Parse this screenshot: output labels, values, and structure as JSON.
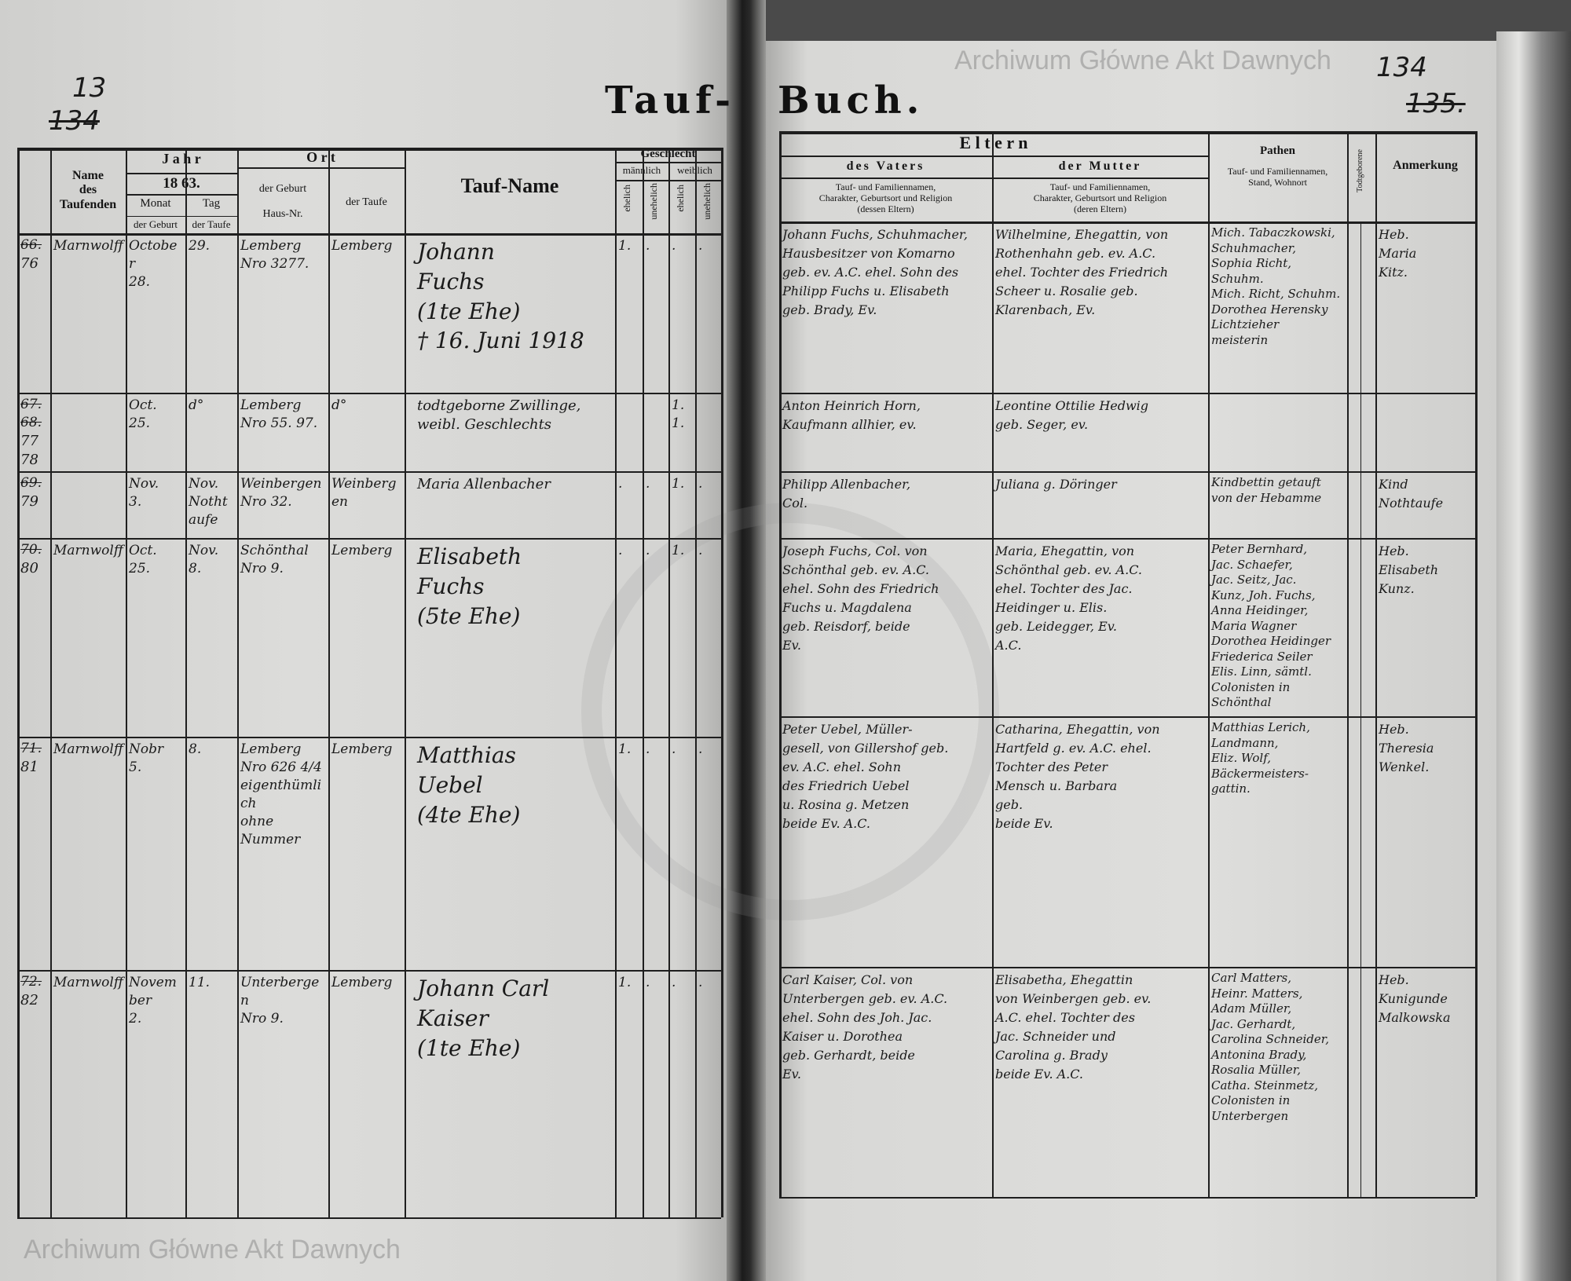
{
  "left_page": {
    "page_numbers": {
      "current": "13",
      "crossed_out": "134"
    },
    "title_part": "Tauf-",
    "headers": {
      "name_des_taufenden": "Name\ndes Taufenden",
      "jahr": "J a h r",
      "year": "18 63.",
      "monat": "Monat",
      "tag": "Tag",
      "der_geburt": "der Geburt",
      "der_taufe": "der Taufe",
      "ort": "O r t",
      "ort_geburt": "der Geburt\n\nHaus-Nr.",
      "ort_taufe": "der Taufe",
      "tauf_name": "Tauf-Name",
      "geschlecht": "Geschlecht",
      "maennlich": "männlich",
      "weiblich": "weiblich",
      "ehelich": "ehelich",
      "unehelich": "unehelich"
    },
    "rows": [
      {
        "old_number": "66.",
        "number": "76",
        "name_des_taufenden": "Marnwolff",
        "birth_month_day": "October\n28.",
        "baptism_day": "29.",
        "birth_place": "Lemberg\nNro 3277.",
        "baptism_place": "Lemberg",
        "baptismal_name": "Johann\nFuchs\n(1te Ehe)\n† 16. Juni 1918",
        "m_ehelich": "1.",
        "m_unehelich": ".",
        "w_ehelich": ".",
        "w_unehelich": "."
      },
      {
        "old_number": "67. 68.",
        "number": "77\n78",
        "name_des_taufenden": "",
        "birth_month_day": "Oct.\n25.",
        "baptism_day": "d°",
        "birth_place": "Lemberg\nNro 55. 97.",
        "baptism_place": "d°",
        "baptismal_name": "todtgeborne Zwillinge,\nweibl. Geschlechts",
        "m_ehelich": "",
        "m_unehelich": "",
        "w_ehelich": "1.\n1.",
        "w_unehelich": ""
      },
      {
        "old_number": "69.",
        "number": "79",
        "name_des_taufenden": "",
        "birth_month_day": "Nov.\n3.",
        "baptism_day": "Nov.\nNothtaufe",
        "birth_place": "Weinbergen\nNro 32.",
        "baptism_place": "Weinbergen",
        "baptismal_name": "Maria Allenbacher",
        "m_ehelich": ".",
        "m_unehelich": ".",
        "w_ehelich": "1.",
        "w_unehelich": "."
      },
      {
        "old_number": "70.",
        "number": "80",
        "name_des_taufenden": "Marnwolff",
        "birth_month_day": "Oct.\n25.",
        "baptism_day": "Nov.\n8.",
        "birth_place": "Schönthal\nNro 9.",
        "baptism_place": "Lemberg",
        "baptismal_name": "Elisabeth\nFuchs\n(5te Ehe)",
        "m_ehelich": ".",
        "m_unehelich": ".",
        "w_ehelich": "1.",
        "w_unehelich": "."
      },
      {
        "old_number": "71.",
        "number": "81",
        "name_des_taufenden": "Marnwolff",
        "birth_month_day": "Nobr\n5.",
        "baptism_day": "8.",
        "birth_place": "Lemberg\nNro 626 4/4\neigenthümlich\nohne\nNummer",
        "baptism_place": "Lemberg",
        "baptismal_name": "Matthias\nUebel\n(4te Ehe)",
        "m_ehelich": "1.",
        "m_unehelich": ".",
        "w_ehelich": ".",
        "w_unehelich": "."
      },
      {
        "old_number": "72.",
        "number": "82",
        "name_des_taufenden": "Marnwolff",
        "birth_month_day": "November\n2.",
        "baptism_day": "11.",
        "birth_place": "Unterbergen\nNro 9.",
        "baptism_place": "Lemberg",
        "baptismal_name": "Johann Carl\nKaiser\n(1te Ehe)",
        "m_ehelich": "1.",
        "m_unehelich": ".",
        "w_ehelich": ".",
        "w_unehelich": "."
      }
    ]
  },
  "right_page": {
    "page_numbers": {
      "current": "134",
      "crossed_out": "135."
    },
    "title_part": "Buch.",
    "headers": {
      "eltern": "E l t e r n",
      "des_vaters": "des Vaters",
      "der_mutter": "der Mutter",
      "vater_sub": "Tauf- und Familiennamen,\nCharakter, Geburtsort und Religion\n(dessen Eltern)",
      "mutter_sub": "Tauf- und Familiennamen,\nCharakter, Geburtsort und Religion\n(deren Eltern)",
      "pathen": "Pathen",
      "pathen_sub": "Tauf- und Familiennamen,\nStand, Wohnort",
      "todtgeborene": "Todtgeborene",
      "anmerkung": "Anmerkung"
    },
    "rows": [
      {
        "vater": "Johann Fuchs, Schuhmacher,\nHausbesitzer von Komarno\ngeb. ev. A.C. ehel. Sohn des\nPhilipp Fuchs u. Elisabeth\ngeb. Brady, Ev.",
        "mutter": "Wilhelmine, Ehegattin, von\nRothenhahn geb. ev. A.C.\nehel. Tochter des Friedrich\nScheer u. Rosalie geb.\nKlarenbach, Ev.",
        "pathen": "Mich. Tabaczkowski,\nSchuhmacher,\nSophia Richt, Schuhm.\nMich. Richt, Schuhm.\nDorothea Herensky\nLichtzieher\nmeisterin",
        "todtgeborene": "",
        "anmerkung": "Heb.\nMaria\nKitz."
      },
      {
        "vater": "Anton Heinrich Horn,\nKaufmann allhier, ev.",
        "mutter": "Leontine Ottilie Hedwig\ngeb. Seger, ev.",
        "pathen": "",
        "todtgeborene": "",
        "anmerkung": ""
      },
      {
        "vater": "Philipp Allenbacher,\nCol.",
        "mutter": "Juliana g. Döringer",
        "pathen": "Kindbettin getauft\nvon der Hebamme",
        "todtgeborene": "",
        "anmerkung": "Kind\nNothtaufe"
      },
      {
        "vater": "Joseph Fuchs, Col. von\nSchönthal geb. ev. A.C.\nehel. Sohn des Friedrich\nFuchs u. Magdalena\ngeb. Reisdorf, beide\nEv.",
        "mutter": "Maria, Ehegattin, von\nSchönthal geb. ev. A.C.\nehel. Tochter des Jac.\nHeidinger u. Elis.\ngeb. Leidegger, Ev.\nA.C.",
        "pathen": "Peter Bernhard,\nJac. Schaefer,\nJac. Seitz, Jac.\nKunz, Joh. Fuchs,\nAnna Heidinger,\nMaria Wagner\nDorothea Heidinger\nFriederica Seiler\nElis. Linn, sämtl.\nColonisten in Schönthal",
        "todtgeborene": "",
        "anmerkung": "Heb.\nElisabeth\nKunz."
      },
      {
        "vater": "Peter Uebel, Müller-\ngesell, von Gillershof geb.\nev. A.C. ehel. Sohn\ndes Friedrich Uebel\nu. Rosina g. Metzen\nbeide Ev. A.C.",
        "mutter": "Catharina, Ehegattin, von\nHartfeld g. ev. A.C. ehel.\nTochter des Peter\nMensch u. Barbara\ngeb.\nbeide Ev.",
        "pathen": "Matthias Lerich,\nLandmann,\nEliz. Wolf,\nBäckermeisters-\ngattin.",
        "todtgeborene": "",
        "anmerkung": "Heb.\nTheresia\nWenkel."
      },
      {
        "vater": "Carl Kaiser, Col. von\nUnterbergen geb. ev. A.C.\nehel. Sohn des Joh. Jac.\nKaiser u. Dorothea\ngeb. Gerhardt, beide\nEv.",
        "mutter": "Elisabetha, Ehegattin\nvon Weinbergen geb. ev.\nA.C. ehel. Tochter des\nJac. Schneider und\nCarolina g. Brady\nbeide Ev. A.C.",
        "pathen": "Carl Matters,\nHeinr. Matters,\nAdam Müller,\nJac. Gerhardt,\nCarolina Schneider,\nAntonina Brady,\nRosalia Müller,\nCatha. Steinmetz,\nColonisten in\nUnterbergen",
        "todtgeborene": "",
        "anmerkung": "Heb.\nKunigunde\nMalkowska"
      }
    ]
  },
  "watermark": "Archiwum Główne Akt Dawnych"
}
